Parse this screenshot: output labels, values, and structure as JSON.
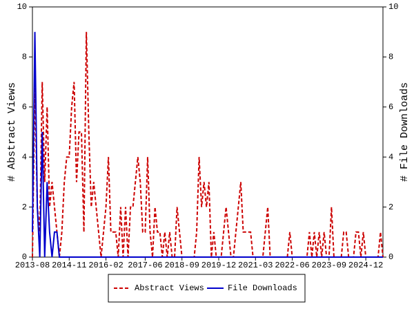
{
  "chart_data": {
    "type": "line",
    "y_label": "# Abstract Views",
    "y2_label": "# File Downloads",
    "categories": [
      "2013-08",
      null,
      null,
      null,
      null,
      null,
      null,
      null,
      null,
      null,
      null,
      null,
      null,
      null,
      null,
      "2014-11",
      null,
      null,
      null,
      null,
      null,
      null,
      null,
      null,
      null,
      null,
      null,
      null,
      null,
      null,
      "2016-02",
      null,
      null,
      null,
      null,
      null,
      null,
      null,
      null,
      null,
      null,
      null,
      null,
      null,
      null,
      null,
      "2017-06",
      null,
      null,
      null,
      null,
      null,
      null,
      null,
      null,
      null,
      null,
      null,
      null,
      null,
      null,
      "2018-09",
      null,
      null,
      null,
      null,
      null,
      null,
      null,
      null,
      null,
      null,
      null,
      null,
      null,
      null,
      "2019-12",
      null,
      null,
      null,
      null,
      null,
      null,
      null,
      null,
      null,
      null,
      null,
      null,
      null,
      null,
      "2021-03",
      null,
      null,
      null,
      null,
      null,
      null,
      null,
      null,
      null,
      null,
      null,
      null,
      null,
      null,
      "2022-06",
      null,
      null,
      null,
      null,
      null,
      null,
      null,
      null,
      null,
      null,
      null,
      null,
      null,
      null,
      "2023-09",
      null,
      null,
      null,
      null,
      null,
      null,
      null,
      null,
      null,
      null,
      null,
      null,
      null,
      null,
      "2024-12",
      null,
      null,
      null,
      null,
      null,
      null,
      null
    ],
    "series": [
      {
        "name": "Abstract Views",
        "color": "#cc0000",
        "dashed": true,
        "axis": "y",
        "values": [
          0,
          7,
          2,
          1,
          7,
          3,
          6,
          2,
          3,
          2,
          1,
          0,
          1,
          3,
          4,
          4,
          6,
          7,
          3,
          5,
          5,
          1,
          9,
          5,
          2,
          3,
          2,
          1,
          0,
          1,
          2,
          4,
          1,
          1,
          1,
          0,
          2,
          0,
          2,
          0,
          2,
          2,
          3,
          4,
          3,
          1,
          1,
          4,
          1,
          0,
          2,
          1,
          1,
          0,
          1,
          0,
          1,
          0,
          0,
          2,
          1,
          0,
          0,
          0,
          0,
          0,
          0,
          1,
          4,
          2,
          3,
          2,
          3,
          0,
          1,
          0,
          0,
          0,
          1,
          2,
          1,
          0,
          0,
          1,
          2,
          3,
          1,
          1,
          1,
          1,
          0,
          0,
          0,
          0,
          0,
          1,
          2,
          0,
          0,
          0,
          0,
          0,
          0,
          0,
          0,
          1,
          0,
          0,
          0,
          0,
          0,
          0,
          0,
          1,
          0,
          1,
          0,
          1,
          0,
          1,
          0,
          0,
          2,
          0,
          0,
          0,
          0,
          1,
          1,
          0,
          0,
          0,
          1,
          1,
          0,
          1,
          0,
          0,
          0,
          0,
          0,
          0,
          1,
          0
        ]
      },
      {
        "name": "File Downloads",
        "color": "#0000cc",
        "dashed": false,
        "axis": "y2",
        "values": [
          1,
          9,
          2,
          0,
          5,
          0,
          3,
          1,
          0,
          1,
          1,
          0,
          0,
          0,
          0,
          0,
          0,
          0,
          0,
          0,
          0,
          0,
          0,
          0,
          0,
          0,
          0,
          0,
          0,
          0,
          0,
          0,
          0,
          0,
          0,
          0,
          0,
          0,
          0,
          0,
          0,
          0,
          0,
          0,
          0,
          0,
          0,
          0,
          0,
          0,
          0,
          0,
          0,
          0,
          0,
          0,
          0,
          0,
          0,
          0,
          0,
          0,
          0,
          0,
          0,
          0,
          0,
          0,
          0,
          0,
          0,
          0,
          0,
          0,
          0,
          0,
          0,
          0,
          0,
          0,
          0,
          0,
          0,
          0,
          0,
          0,
          0,
          0,
          0,
          0,
          0,
          0,
          0,
          0,
          0,
          0,
          0,
          0,
          0,
          0,
          0,
          0,
          0,
          0,
          0,
          0,
          0,
          0,
          0,
          0,
          0,
          0,
          0,
          0,
          0,
          0,
          0,
          0,
          0,
          0,
          0,
          0,
          0,
          0,
          0,
          0,
          0,
          0,
          0,
          0,
          0,
          0,
          0,
          0,
          0,
          0,
          0,
          0,
          0,
          0,
          0,
          0,
          0,
          0
        ]
      }
    ],
    "ylim": [
      0,
      10
    ],
    "yticks": [
      0,
      2,
      4,
      6,
      8,
      10
    ],
    "y2lim": [
      0,
      10
    ],
    "y2ticks": [
      0,
      2,
      4,
      6,
      8,
      10
    ],
    "legend": "bottom"
  }
}
